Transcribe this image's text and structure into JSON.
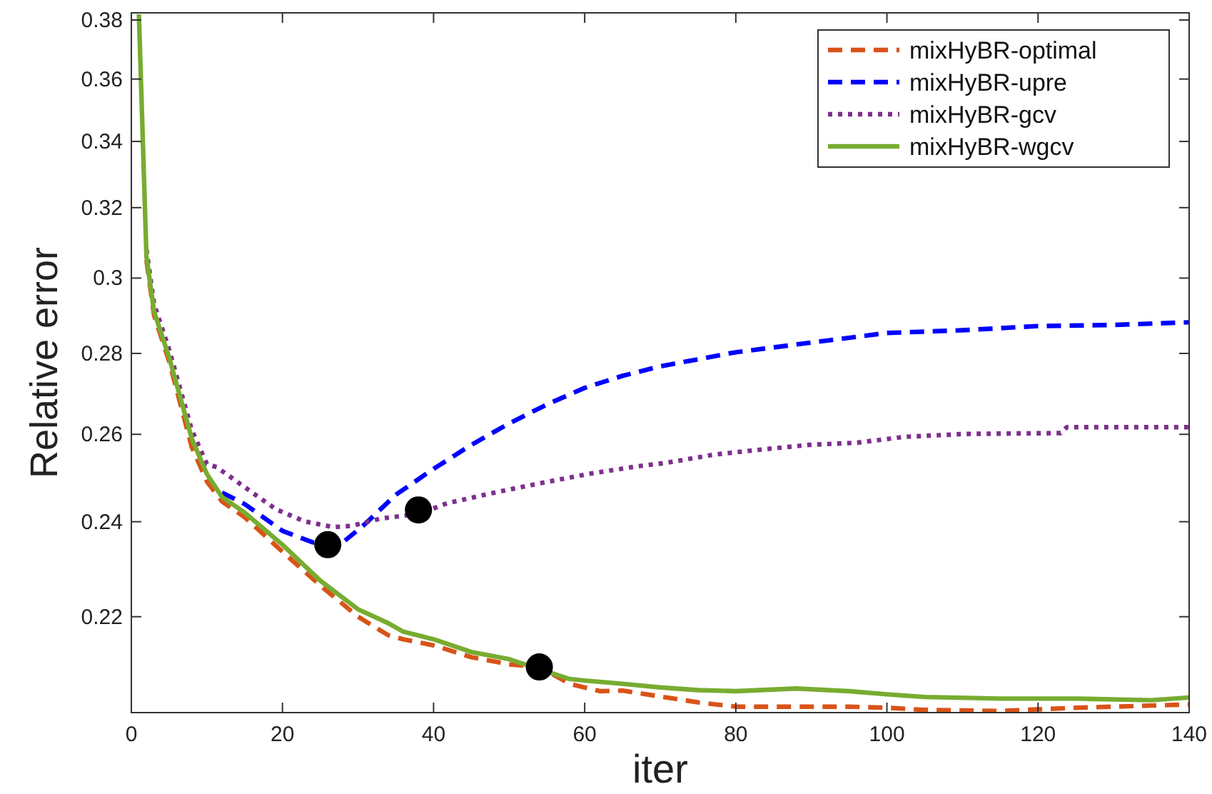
{
  "chart_data": {
    "type": "line",
    "xlabel": "iter",
    "ylabel": "Relative error",
    "log": "y",
    "grid": false,
    "legend": "top right",
    "marker": "none",
    "xlim": [
      0,
      140
    ],
    "xticks": [
      0,
      20,
      40,
      60,
      80,
      100,
      120,
      140
    ],
    "ylim": [
      0.2015,
      0.3825
    ],
    "yticks": [
      0.22,
      0.24,
      0.26,
      0.28,
      0.3,
      0.32,
      0.34,
      0.36,
      0.38
    ],
    "series": [
      {
        "name": "mixHyBR-optimal",
        "color": "#d95319",
        "line_style": "dashed",
        "x": [
          2,
          3,
          5,
          8,
          10,
          12,
          15,
          20,
          25,
          30,
          34,
          36,
          40,
          45,
          50,
          54,
          58,
          62,
          65,
          70,
          75,
          80,
          88,
          95,
          100,
          105,
          115,
          125,
          135,
          140
        ],
        "values": [
          0.305,
          0.29,
          0.278,
          0.257,
          0.249,
          0.2445,
          0.241,
          0.2335,
          0.2264,
          0.22,
          0.2163,
          0.2155,
          0.2143,
          0.212,
          0.2106,
          0.2101,
          0.2069,
          0.2055,
          0.2056,
          0.2045,
          0.2034,
          0.2026,
          0.2026,
          0.2026,
          0.2024,
          0.202,
          0.2018,
          0.2024,
          0.2028,
          0.203
        ]
      },
      {
        "name": "mixHyBR-upre",
        "color": "#0000ff",
        "line_style": "dashed",
        "x": [
          12,
          15,
          20,
          24,
          28,
          31,
          35,
          40,
          45,
          50,
          55,
          60,
          65,
          70,
          75,
          80,
          90,
          100,
          110,
          120,
          130,
          140
        ],
        "values": [
          0.2465,
          0.2439,
          0.238,
          0.2355,
          0.2355,
          0.2396,
          0.246,
          0.2519,
          0.2575,
          0.2626,
          0.2672,
          0.2713,
          0.2743,
          0.2767,
          0.2785,
          0.2803,
          0.2828,
          0.2853,
          0.286,
          0.2871,
          0.2874,
          0.2881
        ]
      },
      {
        "name": "mixHyBR-gcv",
        "color": "#7e2f8e",
        "line_style": "dotted",
        "x": [
          2,
          3,
          5,
          8,
          10,
          11.3,
          16,
          19.2,
          22.9,
          26.7,
          29.2,
          33,
          38,
          41.8,
          48.1,
          54.4,
          60.7,
          67,
          70.8,
          77.1,
          83.4,
          89.7,
          96,
          102.3,
          110.5,
          123,
          123.8,
          140
        ],
        "values": [
          0.308,
          0.293,
          0.281,
          0.261,
          0.253,
          0.2523,
          0.2465,
          0.2427,
          0.2401,
          0.2388,
          0.2391,
          0.2407,
          0.2417,
          0.2441,
          0.2465,
          0.2487,
          0.2508,
          0.2525,
          0.2533,
          0.2552,
          0.2564,
          0.2575,
          0.258,
          0.2594,
          0.2601,
          0.2603,
          0.2617,
          0.2617
        ]
      },
      {
        "name": "mixHyBR-wgcv",
        "color": "#77ac30",
        "line_style": "solid",
        "x": [
          1,
          2,
          3,
          5,
          8,
          10,
          12,
          15,
          20,
          25,
          30,
          34,
          36,
          40,
          45,
          50,
          58,
          60,
          65,
          70,
          75,
          80,
          88,
          95,
          100,
          105,
          115,
          125,
          135,
          140
        ],
        "values": [
          0.382,
          0.306,
          0.291,
          0.279,
          0.259,
          0.2507,
          0.2455,
          0.242,
          0.235,
          0.2274,
          0.2215,
          0.2187,
          0.217,
          0.2155,
          0.213,
          0.2116,
          0.2078,
          0.2075,
          0.2069,
          0.2062,
          0.2057,
          0.2055,
          0.206,
          0.2055,
          0.2049,
          0.2044,
          0.2041,
          0.2041,
          0.2038,
          0.2043
        ]
      },
      {
        "type": "scatter",
        "color": "#000000",
        "marker": "circle",
        "x": [
          26,
          38,
          54
        ],
        "values": [
          0.235,
          0.2426,
          0.2101
        ]
      }
    ]
  }
}
